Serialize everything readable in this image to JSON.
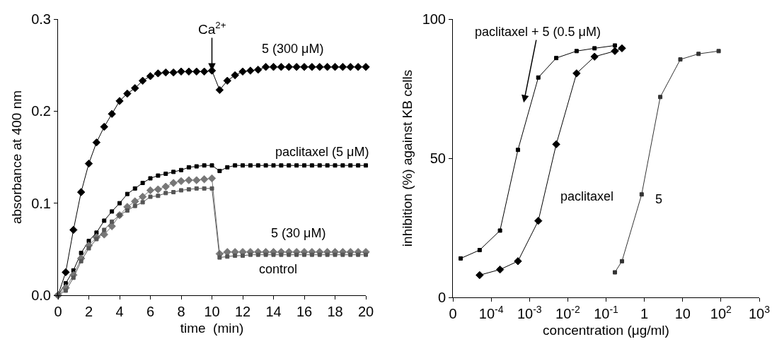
{
  "chart_data": [
    {
      "type": "line",
      "xlabel": "time  (min)",
      "ylabel": "absorbance at 400 nm",
      "x": [
        0,
        0.5,
        1,
        1.5,
        2,
        2.5,
        3,
        3.5,
        4,
        4.5,
        5,
        5.5,
        6,
        6.5,
        7,
        7.5,
        8,
        8.5,
        9,
        9.5,
        10,
        10.5,
        11,
        11.5,
        12,
        12.5,
        13,
        13.5,
        14,
        14.5,
        15,
        15.5,
        16,
        16.5,
        17,
        17.5,
        18,
        18.5,
        19,
        19.5,
        20
      ],
      "series": [
        {
          "name": "5 (300 μM)",
          "color": "#000000",
          "marker": "diamond",
          "values": [
            0,
            0.025,
            0.071,
            0.112,
            0.143,
            0.166,
            0.183,
            0.197,
            0.211,
            0.219,
            0.225,
            0.233,
            0.238,
            0.241,
            0.242,
            0.242,
            0.243,
            0.243,
            0.243,
            0.243,
            0.244,
            0.223,
            0.233,
            0.239,
            0.243,
            0.244,
            0.245,
            0.248,
            0.248,
            0.248,
            0.248,
            0.248,
            0.248,
            0.248,
            0.248,
            0.248,
            0.248,
            0.248,
            0.248,
            0.248,
            0.248
          ]
        },
        {
          "name": "paclitaxel (5 μM)",
          "color": "#000000",
          "marker": "square",
          "values": [
            0,
            0.013,
            0.027,
            0.046,
            0.059,
            0.068,
            0.081,
            0.091,
            0.1,
            0.11,
            0.116,
            0.122,
            0.127,
            0.13,
            0.132,
            0.134,
            0.136,
            0.139,
            0.14,
            0.141,
            0.141,
            0.135,
            0.139,
            0.141,
            0.141,
            0.141,
            0.141,
            0.141,
            0.141,
            0.141,
            0.141,
            0.141,
            0.141,
            0.141,
            0.141,
            0.141,
            0.141,
            0.141,
            0.141,
            0.141,
            0.141
          ]
        },
        {
          "name": "5 (30 μM)",
          "color": "#777777",
          "marker": "diamond",
          "values": [
            0,
            0.008,
            0.022,
            0.04,
            0.054,
            0.063,
            0.066,
            0.075,
            0.087,
            0.096,
            0.102,
            0.107,
            0.114,
            0.115,
            0.118,
            0.122,
            0.124,
            0.125,
            0.125,
            0.126,
            0.127,
            0.045,
            0.047,
            0.047,
            0.047,
            0.047,
            0.047,
            0.047,
            0.047,
            0.047,
            0.047,
            0.047,
            0.047,
            0.047,
            0.047,
            0.047,
            0.047,
            0.047,
            0.047,
            0.047,
            0.047
          ]
        },
        {
          "name": "control",
          "color": "#555555",
          "marker": "square",
          "values": [
            0,
            0.005,
            0.019,
            0.037,
            0.051,
            0.061,
            0.071,
            0.08,
            0.087,
            0.092,
            0.097,
            0.101,
            0.107,
            0.108,
            0.111,
            0.112,
            0.114,
            0.115,
            0.116,
            0.116,
            0.116,
            0.041,
            0.042,
            0.043,
            0.043,
            0.044,
            0.044,
            0.044,
            0.044,
            0.044,
            0.044,
            0.044,
            0.044,
            0.044,
            0.044,
            0.044,
            0.044,
            0.044,
            0.044,
            0.044,
            0.044
          ]
        }
      ],
      "xlim": [
        0,
        20
      ],
      "xticks": [
        0,
        2,
        4,
        6,
        8,
        10,
        12,
        14,
        16,
        18,
        20
      ],
      "ylim": [
        0,
        0.3
      ],
      "yticks": [
        {
          "value": 0,
          "label": "0.0"
        },
        0.1,
        0.2,
        0.3
      ],
      "annotations": [
        {
          "text": "Ca$^{2+}$",
          "x": 10,
          "y": 0.244
        }
      ],
      "grid": false,
      "legend": false,
      "line_style": "solid"
    },
    {
      "type": "line",
      "xlabel": "concentration (μg/ml)",
      "ylabel": "inhibition (%) against KB cells",
      "log": "x",
      "series": [
        {
          "name": "paclitaxel + 5 (0.5 μM)",
          "color": "#000000",
          "marker": "square",
          "x": [
            1.6e-05,
            5e-05,
            0.00017,
            0.0005,
            0.0017,
            0.005,
            0.017,
            0.05,
            0.17
          ],
          "values": [
            14,
            17,
            24,
            53,
            79,
            86,
            88.5,
            89.5,
            90.5
          ]
        },
        {
          "name": "paclitaxel",
          "color": "#000000",
          "marker": "diamond",
          "x": [
            5e-05,
            0.00017,
            0.0005,
            0.0017,
            0.005,
            0.017,
            0.05,
            0.17,
            0.26
          ],
          "values": [
            8,
            10,
            13,
            27.5,
            55,
            80.5,
            86.5,
            88.5,
            89.5
          ]
        },
        {
          "name": "5",
          "color": "#333333",
          "marker": "square",
          "x": [
            0.17,
            0.26,
            0.85,
            2.6,
            8.7,
            26,
            87
          ],
          "values": [
            9,
            13,
            37,
            72,
            85.5,
            87.5,
            88.5
          ]
        }
      ],
      "xlim": [
        1e-05,
        1000
      ],
      "xticks": [
        {
          "value": 1e-05,
          "label": "0"
        },
        {
          "value": 0.0001,
          "label": "10$^{-4}$"
        },
        {
          "value": 0.001,
          "label": "10$^{-3}$"
        },
        {
          "value": 0.01,
          "label": "10$^{-2}$"
        },
        {
          "value": 0.1,
          "label": "10$^{-1}$"
        },
        1,
        10,
        {
          "value": 100,
          "label": "10$^{2}$"
        },
        {
          "value": 1000,
          "label": "10$^{3}$"
        }
      ],
      "ylim": [
        0,
        100
      ],
      "yticks": [
        0,
        50,
        100
      ],
      "grid": false,
      "legend": false,
      "line_style": "solid"
    }
  ]
}
